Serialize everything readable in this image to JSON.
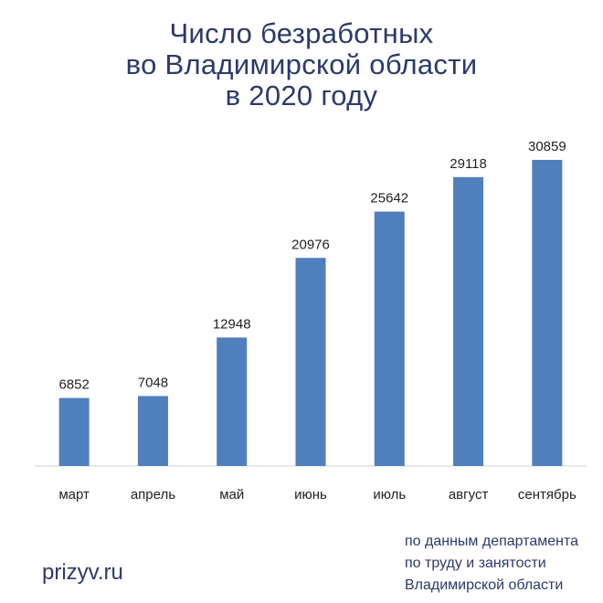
{
  "chart_data": {
    "type": "bar",
    "title_lines": [
      "Число безработных",
      "во Владимирской области",
      "в 2020 году"
    ],
    "categories": [
      "март",
      "апрель",
      "май",
      "июнь",
      "июль",
      "август",
      "сентябрь"
    ],
    "values": [
      6852,
      7048,
      12948,
      20976,
      25642,
      29118,
      30859
    ],
    "ylim": [
      0,
      35000
    ],
    "grid": false,
    "legend": "none",
    "bar_color": "#4f7fbc",
    "text_color": "#2b3a6b"
  },
  "footer": {
    "brand": "prizyv.ru",
    "source_lines": [
      "по данным департамента",
      "по труду и занятости",
      "Владимирской области"
    ]
  }
}
